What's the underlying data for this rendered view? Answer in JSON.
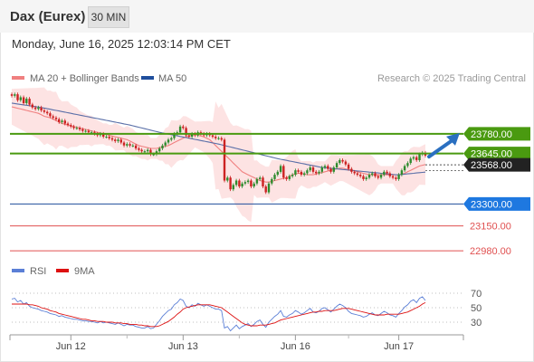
{
  "header": {
    "title": "Dax (Eurex)",
    "interval": "30 MIN"
  },
  "timestamp": "Monday, June 16, 2025 12:03:14 PM CET",
  "legend": {
    "ma20": "MA 20 + Bollinger Bands",
    "ma50": "MA 50",
    "copyright": "Research © 2025 Trading Central",
    "rsi": "RSI",
    "rsi_ma": "9MA"
  },
  "colors": {
    "candle_up": "#2e8b2e",
    "candle_down": "#cc2222",
    "ma20": "#f08080",
    "ma50": "#5a6fa8",
    "bollinger_fill": "#fde0e0",
    "resistance_green": "#4a9a10",
    "support_blue": "#1f4e9c",
    "support_red": "#e05050",
    "arrow": "#2a6fc0",
    "rsi_line": "#5b7fd6",
    "rsi_ma_line": "#dd1111"
  },
  "chart_data": [
    {
      "type": "candlestick",
      "price_range": [
        22900,
        24200
      ],
      "x_labels": [
        "Jun 12",
        "Jun 13",
        "Jun 16",
        "Jun 17"
      ],
      "current_price": "23568.00",
      "levels": [
        {
          "label": "23780.00",
          "value": 23780,
          "kind": "resistance"
        },
        {
          "label": "23645.00",
          "value": 23645,
          "kind": "resistance"
        },
        {
          "label": "23300.00",
          "value": 23300,
          "kind": "support-pivot"
        },
        {
          "label": "23150.00",
          "value": 23150,
          "kind": "support"
        },
        {
          "label": "22980.00",
          "value": 22980,
          "kind": "support"
        }
      ],
      "series": {
        "close": [
          24040,
          24050,
          24010,
          24030,
          23990,
          24020,
          23980,
          23960,
          23950,
          23960,
          23940,
          23930,
          23920,
          23900,
          23890,
          23880,
          23860,
          23870,
          23850,
          23840,
          23830,
          23820,
          23820,
          23810,
          23800,
          23800,
          23790,
          23790,
          23780,
          23770,
          23780,
          23760,
          23760,
          23750,
          23740,
          23730,
          23740,
          23720,
          23700,
          23710,
          23700,
          23700,
          23680,
          23670,
          23660,
          23660,
          23670,
          23640,
          23640,
          23660,
          23680,
          23700,
          23720,
          23740,
          23750,
          23780,
          23790,
          23830,
          23820,
          23770,
          23760,
          23780,
          23770,
          23790,
          23780,
          23770,
          23780,
          23770,
          23760,
          23750,
          23750,
          23740,
          23460,
          23480,
          23400,
          23430,
          23460,
          23420,
          23440,
          23450,
          23460,
          23420,
          23440,
          23470,
          23480,
          23420,
          23380,
          23440,
          23470,
          23500,
          23520,
          23560,
          23480,
          23470,
          23490,
          23500,
          23530,
          23520,
          23500,
          23510,
          23530,
          23550,
          23520,
          23510,
          23520,
          23550,
          23560,
          23540,
          23520,
          23550,
          23580,
          23600,
          23590,
          23570,
          23540,
          23520,
          23510,
          23500,
          23490,
          23470,
          23480,
          23500,
          23510,
          23490,
          23480,
          23500,
          23520,
          23510,
          23490,
          23480,
          23470,
          23500,
          23530,
          23560,
          23580,
          23610,
          23620,
          23600,
          23640,
          23650,
          23630
        ],
        "ma20": [
          23965,
          23960,
          23955,
          23950,
          23945,
          23940,
          23935,
          23930,
          23925,
          23920,
          23910,
          23900,
          23895,
          23890,
          23880,
          23870,
          23860,
          23850,
          23845,
          23840,
          23835,
          23830,
          23825,
          23820,
          23815,
          23810,
          23805,
          23800,
          23795,
          23790,
          23785,
          23780,
          23775,
          23770,
          23765,
          23760,
          23755,
          23750,
          23745,
          23740,
          23730,
          23720,
          23710,
          23700,
          23695,
          23690,
          23685,
          23680,
          23680,
          23680,
          23685,
          23690,
          23695,
          23700,
          23710,
          23720,
          23730,
          23740,
          23750,
          23760,
          23765,
          23770,
          23775,
          23770,
          23765,
          23760,
          23750,
          23740,
          23720,
          23700,
          23680,
          23660,
          23640,
          23620,
          23600,
          23580,
          23560,
          23540,
          23520,
          23510,
          23500,
          23490,
          23480,
          23470,
          23460,
          23455,
          23450,
          23450,
          23455,
          23460,
          23465,
          23470,
          23475,
          23480,
          23490,
          23500,
          23505,
          23510,
          23510,
          23505,
          23500,
          23500,
          23500,
          23505,
          23510,
          23515,
          23520,
          23525,
          23530,
          23535,
          23540,
          23545,
          23545,
          23540,
          23535,
          23530,
          23525,
          23520,
          23515,
          23510,
          23505,
          23500,
          23500,
          23500,
          23500,
          23500,
          23500,
          23500,
          23500,
          23500,
          23500,
          23500,
          23505,
          23510,
          23520,
          23530,
          23540,
          23550,
          23560,
          23565,
          23570
        ],
        "ma50": [
          23990,
          23987,
          23984,
          23981,
          23978,
          23975,
          23972,
          23969,
          23966,
          23963,
          23960,
          23956,
          23952,
          23948,
          23944,
          23940,
          23936,
          23932,
          23928,
          23924,
          23920,
          23916,
          23912,
          23908,
          23904,
          23900,
          23896,
          23892,
          23888,
          23884,
          23880,
          23876,
          23872,
          23868,
          23864,
          23860,
          23856,
          23852,
          23848,
          23844,
          23840,
          23835,
          23830,
          23825,
          23820,
          23815,
          23810,
          23805,
          23800,
          23795,
          23790,
          23786,
          23782,
          23778,
          23774,
          23770,
          23766,
          23762,
          23758,
          23754,
          23750,
          23746,
          23742,
          23738,
          23734,
          23730,
          23726,
          23722,
          23718,
          23714,
          23710,
          23705,
          23700,
          23695,
          23690,
          23685,
          23680,
          23675,
          23670,
          23665,
          23660,
          23655,
          23650,
          23645,
          23640,
          23635,
          23630,
          23625,
          23620,
          23615,
          23610,
          23606,
          23602,
          23598,
          23594,
          23590,
          23586,
          23582,
          23578,
          23574,
          23570,
          23566,
          23562,
          23558,
          23554,
          23550,
          23548,
          23546,
          23544,
          23542,
          23540,
          23538,
          23536,
          23534,
          23532,
          23530,
          23528,
          23526,
          23524,
          23522,
          23520,
          23518,
          23516,
          23514,
          23512,
          23510,
          23508,
          23506,
          23504,
          23502,
          23500,
          23500,
          23502,
          23504,
          23506,
          23508,
          23510,
          23512,
          23514,
          23516,
          23518
        ]
      }
    },
    {
      "type": "line",
      "title": "RSI",
      "y_ticks": [
        70,
        50,
        30
      ],
      "ylim": [
        10,
        90
      ],
      "series": [
        {
          "name": "RSI",
          "values": [
            62,
            63,
            58,
            60,
            55,
            57,
            52,
            50,
            49,
            48,
            46,
            45,
            44,
            42,
            41,
            40,
            38,
            39,
            37,
            36,
            35,
            34,
            34,
            33,
            32,
            32,
            31,
            31,
            30,
            29,
            31,
            29,
            30,
            29,
            28,
            27,
            29,
            27,
            25,
            27,
            26,
            26,
            24,
            23,
            22,
            22,
            24,
            21,
            22,
            27,
            32,
            38,
            42,
            46,
            48,
            54,
            57,
            62,
            60,
            52,
            50,
            54,
            52,
            56,
            54,
            52,
            54,
            52,
            50,
            48,
            48,
            46,
            22,
            24,
            18,
            22,
            26,
            21,
            24,
            26,
            28,
            24,
            27,
            31,
            33,
            27,
            23,
            30,
            34,
            38,
            41,
            46,
            38,
            37,
            40,
            42,
            46,
            44,
            41,
            43,
            46,
            49,
            44,
            43,
            45,
            49,
            50,
            47,
            44,
            48,
            52,
            55,
            53,
            50,
            45,
            42,
            41,
            40,
            39,
            37,
            38,
            41,
            43,
            40,
            39,
            42,
            45,
            43,
            40,
            39,
            37,
            42,
            46,
            51,
            54,
            59,
            61,
            57,
            63,
            65,
            60
          ]
        },
        {
          "name": "9MA",
          "values": [
            55,
            55,
            55,
            55,
            55,
            55,
            54,
            54,
            53,
            52,
            50,
            49,
            48,
            46,
            45,
            44,
            42,
            41,
            40,
            39,
            38,
            37,
            36,
            35,
            34,
            34,
            33,
            32,
            32,
            31,
            31,
            31,
            30,
            30,
            30,
            29,
            29,
            29,
            28,
            28,
            27,
            27,
            27,
            26,
            26,
            25,
            25,
            24,
            24,
            24,
            25,
            27,
            29,
            31,
            34,
            37,
            41,
            44,
            48,
            50,
            51,
            52,
            53,
            54,
            54,
            54,
            54,
            54,
            53,
            52,
            51,
            50,
            47,
            44,
            41,
            38,
            35,
            32,
            29,
            27,
            26,
            25,
            25,
            25,
            26,
            26,
            26,
            27,
            28,
            29,
            31,
            33,
            34,
            35,
            36,
            37,
            38,
            39,
            40,
            41,
            42,
            43,
            44,
            44,
            45,
            45,
            46,
            46,
            46,
            46,
            47,
            48,
            49,
            49,
            49,
            48,
            47,
            46,
            45,
            44,
            43,
            42,
            41,
            40,
            40,
            40,
            40,
            41,
            41,
            41,
            41,
            41,
            42,
            43,
            44,
            46,
            48,
            50,
            52,
            55,
            57
          ]
        }
      ]
    }
  ]
}
